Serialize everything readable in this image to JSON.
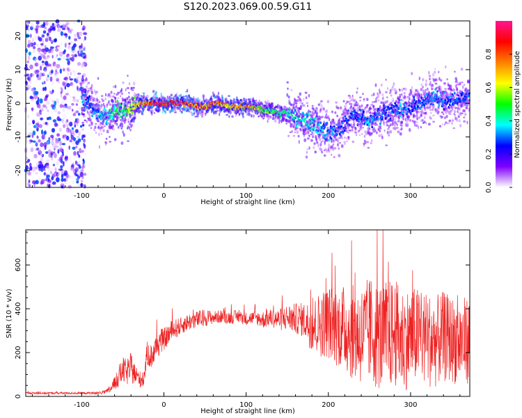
{
  "title": "S120.2023.069.00.59.G11",
  "chart_data": [
    {
      "type": "heatmap",
      "name": "spectrogram",
      "xlabel": "Height of straight line (km)",
      "ylabel": "Frequency (Hz)",
      "xlim": [
        -168,
        372
      ],
      "ylim": [
        -25,
        24.5
      ],
      "xticks": [
        -100,
        0,
        100,
        200,
        300
      ],
      "yticks": [
        -20,
        -10,
        0,
        10,
        20
      ],
      "grid": false,
      "colorbar": {
        "label": "Normalized spectral amplitude",
        "range": [
          0.0,
          1.0
        ],
        "ticks": [
          0.0,
          0.2,
          0.4,
          0.6,
          0.8
        ],
        "colormap": [
          "#ffffff",
          "#7f00ff",
          "#0000ff",
          "#00ffff",
          "#00ff00",
          "#ffff00",
          "#ff8000",
          "#ff0000",
          "#ff1493"
        ]
      },
      "ridge": {
        "x": [
          -100,
          -90,
          -80,
          -70,
          -60,
          -50,
          -40,
          -30,
          -20,
          -10,
          0,
          10,
          20,
          30,
          40,
          50,
          60,
          70,
          80,
          90,
          100,
          110,
          120,
          130,
          140,
          150,
          160,
          170,
          180,
          190,
          200,
          210,
          220,
          230,
          240,
          250,
          260,
          270,
          280,
          290,
          300,
          310,
          320,
          330,
          340,
          350,
          360,
          370
        ],
        "freq": [
          1,
          0,
          -3,
          -4,
          -2,
          -3,
          -1,
          0,
          0,
          0,
          0,
          0,
          0,
          0,
          -1,
          -1,
          0,
          0,
          -1,
          -1,
          -1,
          -1,
          -2,
          -2,
          -3,
          -3,
          -4,
          -5,
          -6,
          -7,
          -9,
          -8,
          -6,
          -3,
          -4,
          -5,
          -4,
          -3,
          -2,
          -2,
          -1,
          0,
          1,
          2,
          0,
          1,
          1,
          2
        ],
        "amplitude": [
          0.35,
          0.3,
          0.35,
          0.4,
          0.45,
          0.5,
          0.6,
          0.7,
          0.85,
          0.95,
          1.0,
          1.0,
          0.95,
          0.9,
          0.85,
          0.8,
          0.8,
          0.75,
          0.7,
          0.7,
          0.75,
          0.65,
          0.55,
          0.5,
          0.5,
          0.45,
          0.4,
          0.4,
          0.4,
          0.35,
          0.35,
          0.3,
          0.3,
          0.3,
          0.3,
          0.35,
          0.3,
          0.3,
          0.3,
          0.35,
          0.3,
          0.3,
          0.3,
          0.35,
          0.3,
          0.3,
          0.3,
          0.3
        ]
      }
    },
    {
      "type": "line",
      "name": "snr",
      "xlabel": "Height of straight line (km)",
      "ylabel": "SNR (10 * v/v)",
      "xlim": [
        -168,
        372
      ],
      "ylim": [
        0,
        760
      ],
      "xticks": [
        -100,
        0,
        100,
        200,
        300
      ],
      "yticks": [
        0,
        200,
        400,
        600
      ],
      "grid": false,
      "color": "#ee2222",
      "series": [
        {
          "x": [
            -168,
            -150,
            -130,
            -110,
            -90,
            -80,
            -70,
            -65,
            -60,
            -55,
            -50,
            -45,
            -40,
            -35,
            -30,
            -25,
            -20,
            -15,
            -10,
            -5,
            0,
            10,
            20,
            30,
            40,
            50,
            60,
            70,
            80,
            90,
            100,
            110,
            120,
            130,
            140,
            150,
            160,
            170,
            180,
            190,
            200,
            210,
            220,
            230,
            240,
            250,
            260,
            270,
            280,
            290,
            300,
            310,
            320,
            330,
            340,
            350,
            360,
            372
          ],
          "y": [
            15,
            15,
            15,
            15,
            15,
            15,
            20,
            35,
            60,
            90,
            120,
            110,
            130,
            100,
            80,
            70,
            200,
            180,
            220,
            250,
            260,
            300,
            320,
            340,
            350,
            360,
            360,
            365,
            360,
            365,
            355,
            360,
            350,
            360,
            350,
            360,
            355,
            350,
            320,
            330,
            340,
            320,
            310,
            290,
            280,
            300,
            280,
            270,
            290,
            260,
            270,
            280,
            260,
            250,
            270,
            260,
            250,
            260
          ],
          "spread": [
            5,
            5,
            5,
            5,
            5,
            5,
            10,
            20,
            30,
            50,
            60,
            60,
            70,
            50,
            40,
            30,
            60,
            60,
            60,
            60,
            50,
            50,
            40,
            40,
            40,
            40,
            30,
            30,
            30,
            30,
            30,
            30,
            40,
            40,
            50,
            60,
            70,
            80,
            120,
            150,
            170,
            180,
            200,
            220,
            230,
            250,
            250,
            260,
            250,
            240,
            230,
            220,
            220,
            210,
            210,
            200,
            200,
            200
          ]
        }
      ]
    }
  ]
}
